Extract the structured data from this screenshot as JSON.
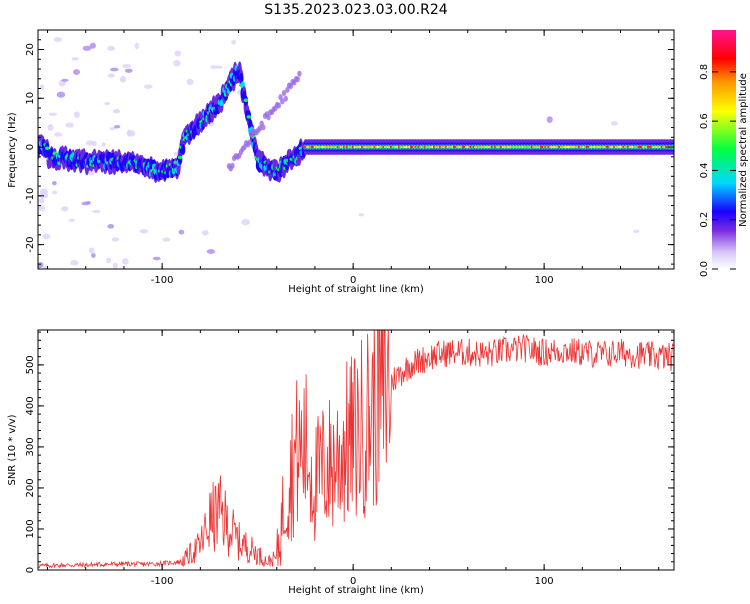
{
  "title": "S135.2023.023.03.00.R24",
  "chart_data": [
    {
      "type": "heatmap",
      "xlabel": "Height of straight line (km)",
      "ylabel": "Frequency (Hz)",
      "xlim": [
        -165,
        168
      ],
      "ylim": [
        -25,
        24
      ],
      "x_ticks": [
        -100,
        0,
        100
      ],
      "y_ticks": [
        -20,
        -10,
        0,
        10,
        20
      ],
      "colorbar": {
        "label": "Normalized spectral amplitude",
        "ticks": [
          0.0,
          0.2,
          0.4,
          0.6,
          0.8
        ],
        "range": [
          0,
          0.97
        ],
        "colormap": [
          "#ffffff",
          "#d9c8f7",
          "#6a2be0",
          "#0000ff",
          "#00ffff",
          "#00ff00",
          "#ffff00",
          "#ff9900",
          "#ff0000",
          "#ff1493"
        ]
      },
      "signal_track": [
        {
          "x": -160,
          "y": -2
        },
        {
          "x": -140,
          "y": -3
        },
        {
          "x": -120,
          "y": -3
        },
        {
          "x": -100,
          "y": -5
        },
        {
          "x": -92,
          "y": -4
        },
        {
          "x": -88,
          "y": 2
        },
        {
          "x": -80,
          "y": 5
        },
        {
          "x": -70,
          "y": 9
        },
        {
          "x": -60,
          "y": 16
        },
        {
          "x": -50,
          "y": -3
        },
        {
          "x": -40,
          "y": -5
        },
        {
          "x": -30,
          "y": -2
        },
        {
          "x": -25,
          "y": 0
        },
        {
          "x": -10,
          "y": 0
        },
        {
          "x": 0,
          "y": 0
        },
        {
          "x": 50,
          "y": 0
        },
        {
          "x": 100,
          "y": 0
        },
        {
          "x": 168,
          "y": 0
        }
      ]
    },
    {
      "type": "line",
      "xlabel": "Height of straight line (km)",
      "ylabel": "SNR (10 * v/v)",
      "xlim": [
        -165,
        168
      ],
      "ylim": [
        0,
        585
      ],
      "x_ticks": [
        -100,
        0,
        100
      ],
      "y_ticks": [
        0,
        100,
        200,
        300,
        400,
        500
      ],
      "color": "#ee3333",
      "series": [
        {
          "x": [
            -165,
            -150,
            -140,
            -130,
            -120,
            -110,
            -100,
            -90,
            -80,
            -75,
            -70,
            -60,
            -50,
            -45,
            -40,
            -35,
            -30,
            -25,
            -20,
            -15,
            -10,
            -5,
            0,
            5,
            10,
            15,
            20,
            25,
            30,
            40,
            50,
            60,
            70,
            80,
            90,
            100,
            110,
            120,
            130,
            140,
            150,
            160,
            168
          ],
          "y": [
            10,
            12,
            12,
            14,
            15,
            14,
            16,
            20,
            60,
            120,
            140,
            70,
            40,
            20,
            30,
            200,
            280,
            300,
            210,
            250,
            260,
            300,
            320,
            350,
            390,
            430,
            460,
            480,
            500,
            520,
            530,
            530,
            525,
            535,
            540,
            530,
            535,
            530,
            525,
            530,
            525,
            520,
            520
          ]
        }
      ],
      "grid": false
    }
  ]
}
